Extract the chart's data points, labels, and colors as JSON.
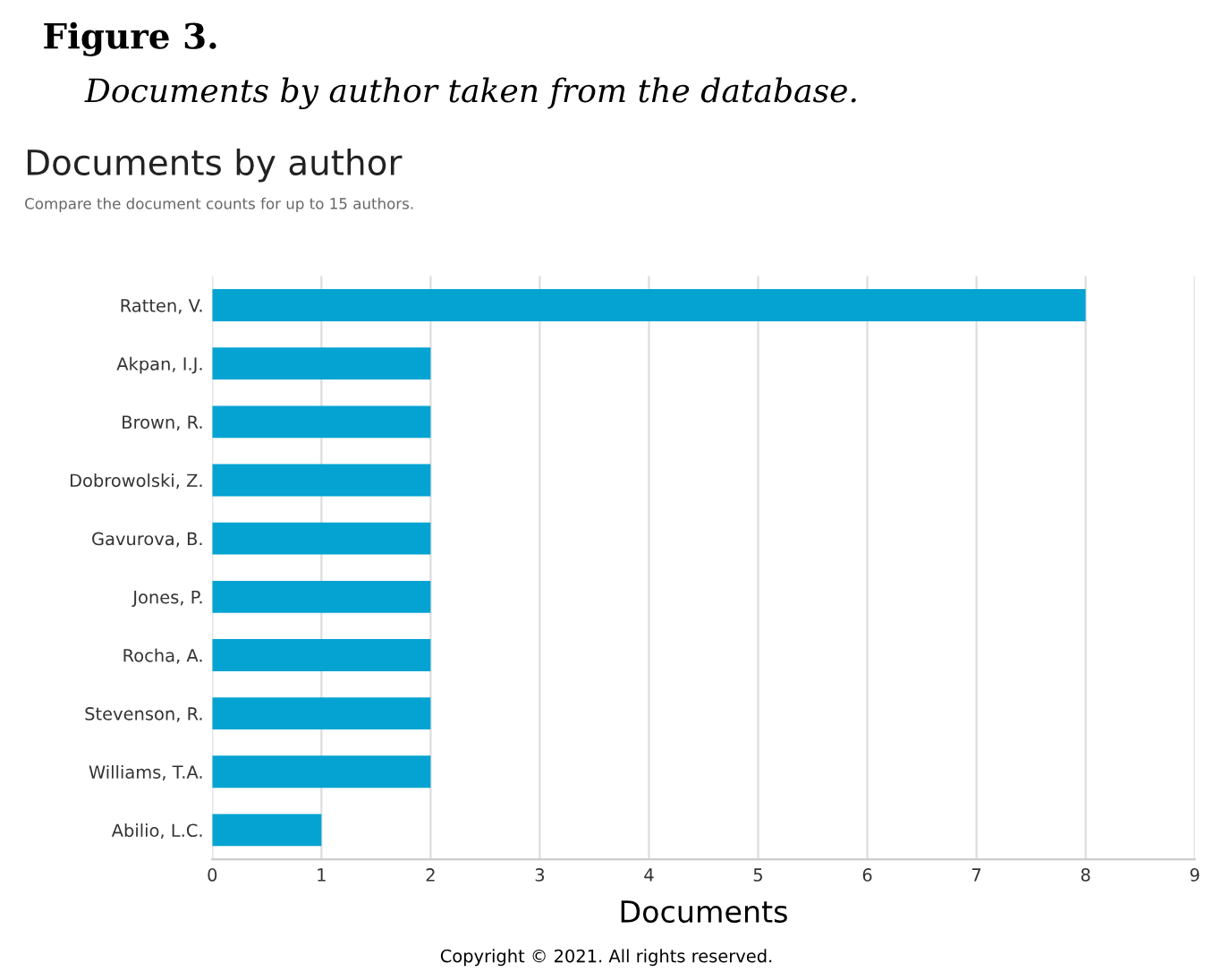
{
  "chart_data": {
    "type": "bar",
    "orientation": "horizontal",
    "title": "Documents by author",
    "subtitle": "Compare the document counts for up to 15 authors.",
    "xlabel": "Documents",
    "categories": [
      "Ratten, V.",
      "Akpan, I.J.",
      "Brown, R.",
      "Dobrowolski, Z.",
      "Gavurova, B.",
      "Jones, P.",
      "Rocha, A.",
      "Stevenson, R.",
      "Williams, T.A.",
      "Abilio, L.C."
    ],
    "values": [
      8,
      2,
      2,
      2,
      2,
      2,
      2,
      2,
      2,
      1
    ],
    "color": "#05a3d2",
    "xlim": [
      0,
      9
    ],
    "xticks": [
      0,
      1,
      2,
      3,
      4,
      5,
      6,
      7,
      8,
      9
    ],
    "grid": "x",
    "annotations": [
      "Figure 3.",
      "Documents by author taken from the database.",
      "Copyright © 2021. All rights reserved."
    ]
  }
}
